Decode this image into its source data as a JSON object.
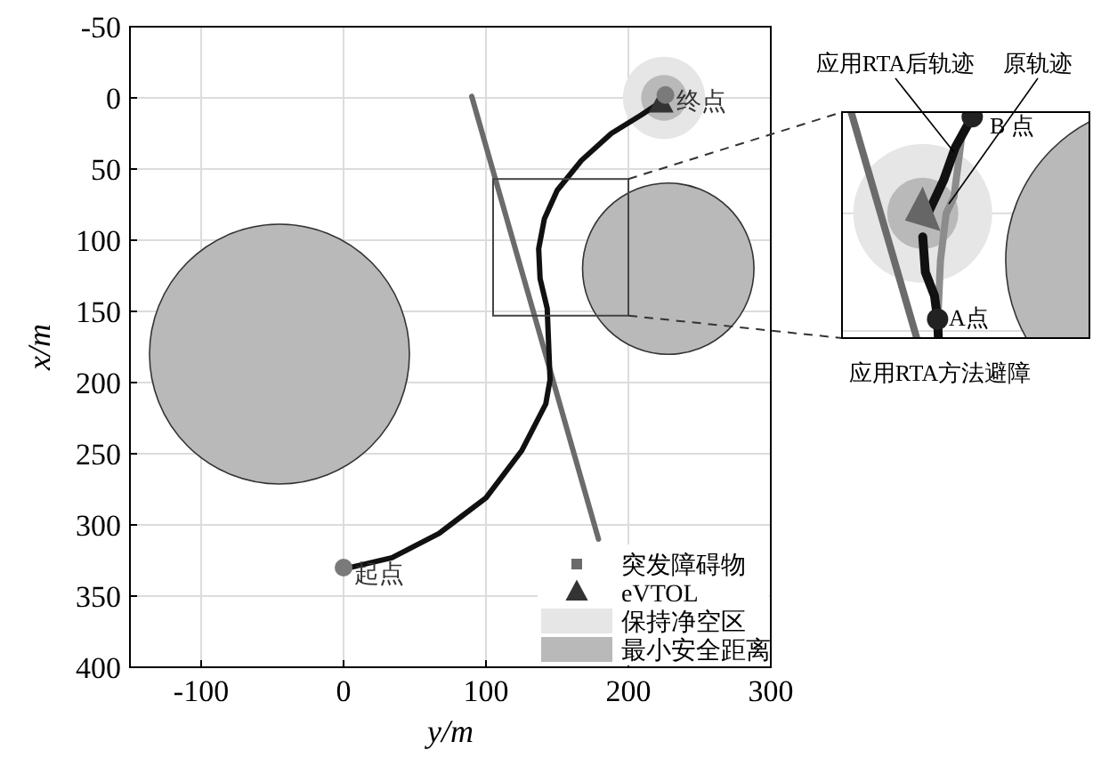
{
  "chart_data": {
    "type": "line",
    "xlabel": "y/m",
    "ylabel": "x/m",
    "xlim": [
      -150,
      300
    ],
    "ylim": [
      400,
      -50
    ],
    "xticks": [
      -100,
      0,
      100,
      200,
      300
    ],
    "yticks": [
      -50,
      0,
      50,
      100,
      150,
      200,
      250,
      300,
      350,
      400
    ],
    "grid": true,
    "legend": "bottom right",
    "series": [
      {
        "name": "突发障碍物",
        "type": "line",
        "color": "#6b6b6b",
        "x": [
          90,
          179
        ],
        "values": [
          -1,
          310
        ]
      },
      {
        "name": "eVTOL",
        "type": "scatter",
        "marker": "triangle",
        "color": "#333333",
        "x": [
          223
        ],
        "values": [
          4
        ]
      },
      {
        "name": "保持净空区",
        "type": "bubble",
        "color": "#e6e6e6",
        "x": [
          225
        ],
        "values": [
          0
        ],
        "sizes": [
          0.1
        ]
      },
      {
        "name": "最小安全距离",
        "type": "bubble",
        "color": "#b9b9b9",
        "x": [
          -45,
          228,
          225
        ],
        "values": [
          180,
          120,
          0
        ],
        "sizes": [
          1,
          0.435,
          0.031
        ]
      },
      {
        "type": "line",
        "color": "#111111",
        "x": [
          0,
          34,
          67,
          100,
          125,
          142,
          145,
          144,
          143,
          138,
          137,
          141,
          150,
          167,
          188,
          209,
          221
        ],
        "values": [
          331,
          323,
          306,
          281,
          248,
          215,
          198,
          173,
          148,
          127,
          106,
          85,
          65,
          44,
          25,
          12,
          4
        ]
      },
      {
        "type": "scatter",
        "marker": "circle",
        "color": "#7a7a7a",
        "x": [
          0,
          226
        ],
        "values": [
          330,
          -2
        ]
      }
    ],
    "annotations": [
      {
        "text": "起点",
        "x": 0,
        "y": 330
      },
      {
        "text": "终点",
        "x": 226,
        "y": -2
      },
      "应用RTA后轨迹",
      "原轨迹",
      "B 点",
      "A点",
      "应用RTA方法避障"
    ]
  }
}
